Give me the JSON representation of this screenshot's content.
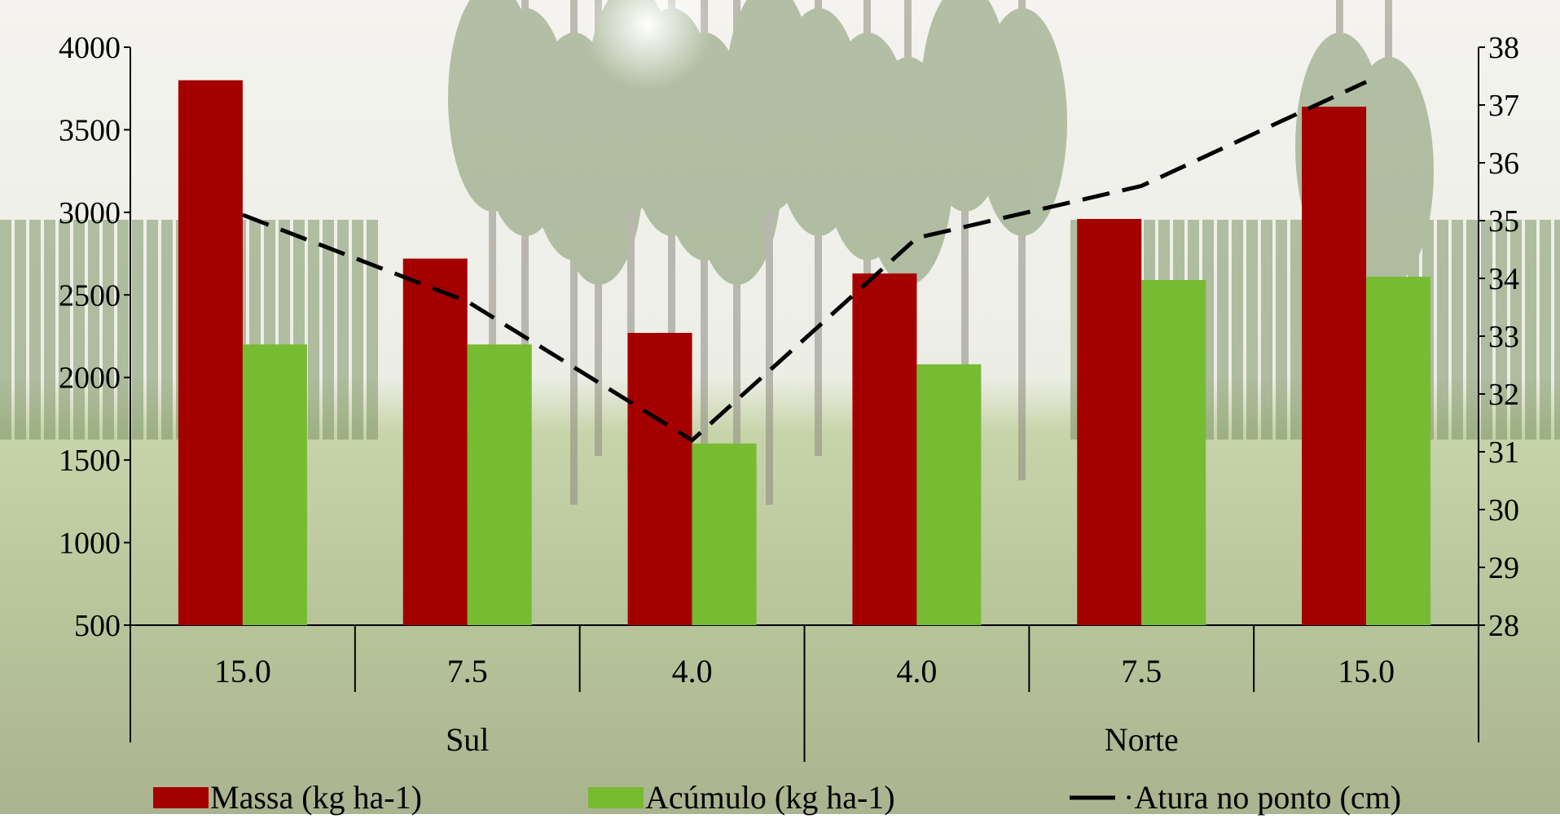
{
  "chart_data": {
    "type": "bar",
    "categories": [
      "15.0",
      "7.5",
      "4.0",
      "4.0",
      "7.5",
      "15.0"
    ],
    "groups": [
      {
        "label": "Sul",
        "from": 0,
        "to": 2
      },
      {
        "label": "Norte",
        "from": 3,
        "to": 5
      }
    ],
    "series": [
      {
        "name": "Massa (kg ha-1)",
        "type": "bar",
        "axis": "left",
        "color": "#a50000",
        "values": [
          3800,
          2720,
          2270,
          2630,
          2960,
          3640
        ]
      },
      {
        "name": "Acúmulo (kg ha-1)",
        "type": "bar",
        "axis": "left",
        "color": "#77bb33",
        "values": [
          2200,
          2200,
          1600,
          2080,
          2590,
          2610
        ]
      },
      {
        "name": "·Atura no ponto (cm)",
        "type": "line",
        "axis": "right",
        "color": "#000000",
        "dash": "dashed",
        "values": [
          35.1,
          33.6,
          31.2,
          34.7,
          35.6,
          37.4
        ]
      }
    ],
    "y_left": {
      "min": 500,
      "max": 4000,
      "ticks": [
        500,
        1000,
        1500,
        2000,
        2500,
        3000,
        3500,
        4000
      ]
    },
    "y_right": {
      "min": 28,
      "max": 38,
      "ticks": [
        28,
        29,
        30,
        31,
        32,
        33,
        34,
        35,
        36,
        37,
        38
      ]
    },
    "legend_position": "bottom",
    "background": "photograph of eucalyptus plantation rows over pasture, faded",
    "grid": false
  }
}
